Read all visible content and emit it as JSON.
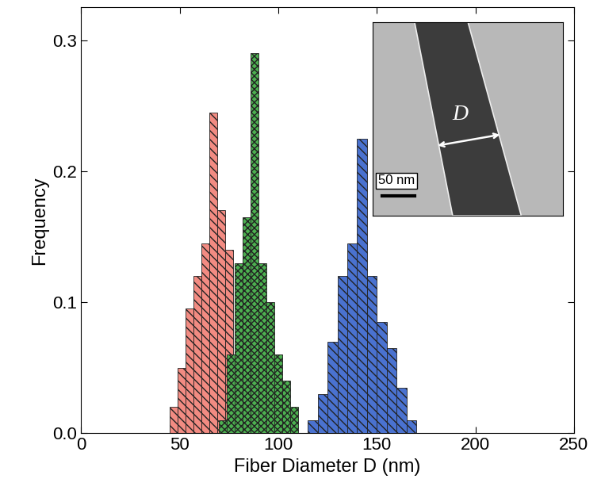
{
  "chart_data": {
    "type": "histogram",
    "x_label": "Fiber Diameter D (nm)",
    "y_label": "Frequency",
    "series": [
      {
        "color": "#f28b82",
        "bins": [
          45,
          49,
          53,
          57,
          61,
          65,
          69,
          73,
          77
        ],
        "values": [
          0.02,
          0.05,
          0.095,
          0.12,
          0.145,
          0.245,
          0.17,
          0.14
        ]
      },
      {
        "color": "#4cb050",
        "bins": [
          70,
          74,
          78,
          82,
          86,
          90,
          94,
          98,
          102,
          106,
          110
        ],
        "values": [
          0.01,
          0.06,
          0.13,
          0.165,
          0.29,
          0.13,
          0.1,
          0.06,
          0.04,
          0.02
        ]
      },
      {
        "color": "#4a72d0",
        "bins": [
          115,
          120,
          125,
          130,
          135,
          140,
          145,
          150,
          155,
          160,
          165,
          170
        ],
        "values": [
          0.01,
          0.03,
          0.07,
          0.12,
          0.145,
          0.225,
          0.12,
          0.085,
          0.065,
          0.035,
          0.01
        ]
      }
    ],
    "xlim": [
      0,
      250
    ],
    "xticks": [
      0,
      50,
      100,
      150,
      200,
      250
    ],
    "ylim": [
      0,
      0.325
    ],
    "yticks": [
      {
        "value": 0,
        "label": "0.0"
      },
      0.1,
      0.2,
      0.3
    ],
    "annotations": [
      "D",
      "50 nm"
    ]
  }
}
